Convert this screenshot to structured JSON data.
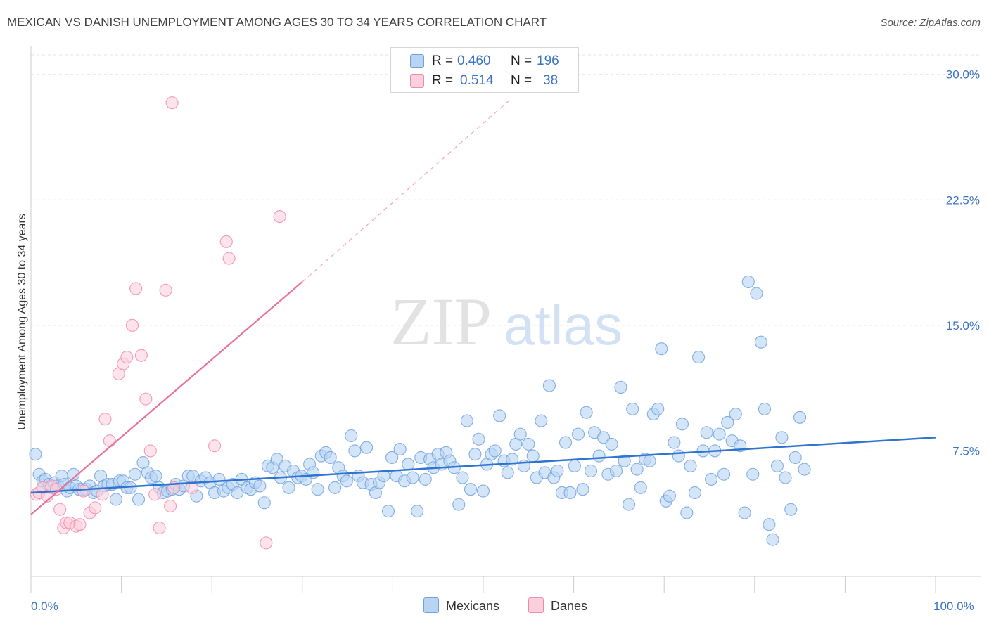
{
  "title": "MEXICAN VS DANISH UNEMPLOYMENT AMONG AGES 30 TO 34 YEARS CORRELATION CHART",
  "source": "Source: ZipAtlas.com",
  "watermark": {
    "zip": "ZIP",
    "atlas": "atlas"
  },
  "stats": {
    "mexicans": {
      "r_label": "R =",
      "r_value": "0.460",
      "n_label": "N =",
      "n_value": "196"
    },
    "danes": {
      "r_label": "R =",
      "r_value": "0.514",
      "n_label": "N =",
      "n_value": "38"
    }
  },
  "legend": {
    "mexicans": "Mexicans",
    "danes": "Danes"
  },
  "colors": {
    "mexicans": "#6fa3e0",
    "mexicans_fill": "#b9d3f3",
    "mexicans_line": "#2f74cf",
    "danes": "#f08cab",
    "danes_fill": "#fbd0dd",
    "danes_line": "#e8709a",
    "axis_text": "#3a74c4"
  },
  "chart_data": {
    "type": "scatter",
    "title": "MEXICAN VS DANISH UNEMPLOYMENT AMONG AGES 30 TO 34 YEARS CORRELATION CHART",
    "xlabel": "",
    "ylabel": "Unemployment Among Ages 30 to 34 years",
    "xlim": [
      0,
      100
    ],
    "ylim": [
      0,
      31.5
    ],
    "x_tick_labels": [
      "0.0%",
      "100.0%"
    ],
    "y_ticks": [
      7.5,
      15.0,
      22.5,
      30.0
    ],
    "y_tick_labels": [
      "7.5%",
      "15.0%",
      "22.5%",
      "30.0%"
    ],
    "grid": true,
    "legend_position": "bottom-center",
    "series": [
      {
        "name": "Mexicans",
        "trend": {
          "x0": 0,
          "y0": 5.0,
          "x1": 100,
          "y1": 8.3
        },
        "points": [
          [
            0.5,
            7.3
          ],
          [
            0.9,
            6.1
          ],
          [
            1.3,
            5.7
          ],
          [
            1.6,
            5.8
          ],
          [
            2.0,
            5.5
          ],
          [
            2.2,
            5.3
          ],
          [
            2.6,
            5.6
          ],
          [
            3.0,
            5.4
          ],
          [
            3.4,
            6.0
          ],
          [
            3.7,
            5.5
          ],
          [
            4.0,
            5.1
          ],
          [
            4.3,
            5.3
          ],
          [
            4.7,
            6.1
          ],
          [
            5.0,
            5.4
          ],
          [
            5.3,
            5.2
          ],
          [
            5.7,
            5.2
          ],
          [
            6.1,
            5.2
          ],
          [
            6.5,
            5.4
          ],
          [
            6.9,
            5.0
          ],
          [
            7.3,
            5.1
          ],
          [
            7.7,
            6.0
          ],
          [
            8.1,
            5.4
          ],
          [
            8.5,
            5.5
          ],
          [
            9.0,
            5.5
          ],
          [
            9.4,
            4.6
          ],
          [
            9.8,
            5.7
          ],
          [
            10.2,
            5.7
          ],
          [
            10.6,
            5.3
          ],
          [
            11.0,
            5.3
          ],
          [
            11.5,
            6.1
          ],
          [
            11.9,
            4.6
          ],
          [
            12.4,
            6.8
          ],
          [
            12.9,
            6.2
          ],
          [
            13.3,
            5.9
          ],
          [
            13.8,
            6.0
          ],
          [
            14.2,
            5.3
          ],
          [
            14.6,
            5.0
          ],
          [
            15.1,
            5.1
          ],
          [
            15.6,
            5.2
          ],
          [
            16.0,
            5.5
          ],
          [
            16.4,
            5.2
          ],
          [
            16.9,
            5.4
          ],
          [
            17.4,
            6.0
          ],
          [
            17.9,
            6.0
          ],
          [
            18.3,
            4.8
          ],
          [
            18.8,
            5.7
          ],
          [
            19.3,
            5.9
          ],
          [
            19.8,
            5.6
          ],
          [
            20.3,
            5.0
          ],
          [
            20.8,
            5.8
          ],
          [
            21.3,
            5.1
          ],
          [
            21.8,
            5.3
          ],
          [
            22.3,
            5.5
          ],
          [
            22.8,
            5.0
          ],
          [
            23.3,
            5.8
          ],
          [
            23.9,
            5.3
          ],
          [
            24.3,
            5.2
          ],
          [
            24.8,
            5.6
          ],
          [
            25.3,
            5.4
          ],
          [
            25.8,
            4.4
          ],
          [
            26.2,
            6.6
          ],
          [
            26.7,
            6.5
          ],
          [
            27.2,
            7.0
          ],
          [
            27.6,
            5.9
          ],
          [
            28.1,
            6.6
          ],
          [
            28.5,
            5.3
          ],
          [
            29.0,
            6.3
          ],
          [
            29.5,
            5.9
          ],
          [
            29.9,
            6.0
          ],
          [
            30.4,
            5.8
          ],
          [
            30.8,
            6.7
          ],
          [
            31.2,
            6.2
          ],
          [
            31.7,
            5.2
          ],
          [
            32.1,
            7.2
          ],
          [
            32.6,
            7.4
          ],
          [
            33.1,
            7.1
          ],
          [
            33.6,
            5.3
          ],
          [
            34.0,
            6.5
          ],
          [
            34.5,
            6.0
          ],
          [
            34.9,
            5.7
          ],
          [
            35.4,
            8.4
          ],
          [
            35.8,
            7.5
          ],
          [
            36.2,
            6.0
          ],
          [
            36.7,
            5.6
          ],
          [
            37.1,
            7.7
          ],
          [
            37.6,
            5.5
          ],
          [
            38.1,
            5.0
          ],
          [
            38.5,
            5.6
          ],
          [
            39.0,
            6.0
          ],
          [
            39.5,
            3.9
          ],
          [
            39.9,
            7.1
          ],
          [
            40.4,
            6.0
          ],
          [
            40.8,
            7.6
          ],
          [
            41.3,
            5.7
          ],
          [
            41.7,
            6.7
          ],
          [
            42.2,
            5.9
          ],
          [
            42.7,
            3.9
          ],
          [
            43.1,
            7.1
          ],
          [
            43.6,
            5.8
          ],
          [
            44.1,
            7.0
          ],
          [
            44.5,
            6.5
          ],
          [
            45.0,
            7.3
          ],
          [
            45.4,
            6.7
          ],
          [
            45.9,
            7.4
          ],
          [
            46.3,
            6.9
          ],
          [
            46.8,
            6.5
          ],
          [
            47.3,
            4.3
          ],
          [
            47.7,
            5.9
          ],
          [
            48.2,
            9.3
          ],
          [
            48.6,
            5.2
          ],
          [
            49.1,
            7.3
          ],
          [
            49.5,
            8.2
          ],
          [
            50.0,
            5.1
          ],
          [
            50.4,
            6.7
          ],
          [
            50.9,
            7.3
          ],
          [
            51.3,
            7.5
          ],
          [
            51.8,
            9.6
          ],
          [
            52.3,
            6.9
          ],
          [
            52.7,
            6.2
          ],
          [
            53.2,
            7.0
          ],
          [
            53.6,
            7.9
          ],
          [
            54.1,
            8.5
          ],
          [
            54.5,
            6.6
          ],
          [
            55.0,
            7.9
          ],
          [
            55.5,
            7.2
          ],
          [
            55.9,
            5.9
          ],
          [
            56.4,
            9.3
          ],
          [
            56.8,
            6.2
          ],
          [
            57.3,
            11.4
          ],
          [
            57.8,
            5.9
          ],
          [
            58.2,
            6.3
          ],
          [
            58.7,
            5.0
          ],
          [
            59.1,
            8.0
          ],
          [
            59.6,
            5.0
          ],
          [
            60.1,
            6.6
          ],
          [
            60.5,
            8.5
          ],
          [
            61.0,
            5.2
          ],
          [
            61.4,
            9.8
          ],
          [
            61.9,
            6.3
          ],
          [
            62.3,
            8.6
          ],
          [
            62.8,
            7.2
          ],
          [
            63.3,
            8.3
          ],
          [
            63.8,
            6.1
          ],
          [
            64.2,
            7.9
          ],
          [
            64.7,
            6.3
          ],
          [
            65.2,
            11.3
          ],
          [
            65.6,
            6.9
          ],
          [
            66.1,
            4.3
          ],
          [
            66.5,
            10.0
          ],
          [
            67.0,
            6.4
          ],
          [
            67.4,
            5.3
          ],
          [
            67.9,
            7.0
          ],
          [
            68.4,
            6.9
          ],
          [
            68.8,
            9.7
          ],
          [
            69.3,
            10.0
          ],
          [
            69.7,
            13.6
          ],
          [
            70.2,
            4.5
          ],
          [
            70.6,
            4.8
          ],
          [
            71.1,
            8.0
          ],
          [
            71.6,
            7.2
          ],
          [
            72.0,
            9.1
          ],
          [
            72.5,
            3.8
          ],
          [
            72.9,
            6.6
          ],
          [
            73.4,
            5.0
          ],
          [
            73.8,
            13.1
          ],
          [
            74.3,
            7.5
          ],
          [
            74.7,
            8.6
          ],
          [
            75.2,
            5.8
          ],
          [
            75.6,
            7.5
          ],
          [
            76.1,
            8.5
          ],
          [
            76.6,
            6.1
          ],
          [
            77.0,
            9.2
          ],
          [
            77.5,
            8.1
          ],
          [
            77.9,
            9.7
          ],
          [
            78.4,
            7.8
          ],
          [
            78.9,
            3.8
          ],
          [
            79.3,
            17.6
          ],
          [
            79.8,
            6.1
          ],
          [
            80.2,
            16.9
          ],
          [
            80.7,
            14.0
          ],
          [
            81.1,
            10.0
          ],
          [
            81.6,
            3.1
          ],
          [
            82.0,
            2.2
          ],
          [
            82.5,
            6.6
          ],
          [
            83.0,
            8.3
          ],
          [
            83.4,
            5.9
          ],
          [
            84.0,
            4.0
          ],
          [
            84.5,
            7.1
          ],
          [
            85.0,
            9.5
          ],
          [
            85.5,
            6.4
          ]
        ]
      },
      {
        "name": "Danes",
        "trend": {
          "x0": 0,
          "y0": 3.7,
          "x1": 30,
          "y1": 17.6,
          "dashed_to": {
            "x": 53,
            "y": 28.5
          }
        },
        "points": [
          [
            0.6,
            4.9
          ],
          [
            0.9,
            5.0
          ],
          [
            1.3,
            5.3
          ],
          [
            1.8,
            4.8
          ],
          [
            2.3,
            5.4
          ],
          [
            2.8,
            5.2
          ],
          [
            3.2,
            4.0
          ],
          [
            3.6,
            2.9
          ],
          [
            3.9,
            3.2
          ],
          [
            4.3,
            3.2
          ],
          [
            5.0,
            3.0
          ],
          [
            5.4,
            3.1
          ],
          [
            5.8,
            5.1
          ],
          [
            6.5,
            3.8
          ],
          [
            7.1,
            4.1
          ],
          [
            7.9,
            4.9
          ],
          [
            8.2,
            9.4
          ],
          [
            8.7,
            8.1
          ],
          [
            9.7,
            12.1
          ],
          [
            10.2,
            12.7
          ],
          [
            10.6,
            13.1
          ],
          [
            11.2,
            15.0
          ],
          [
            11.6,
            17.2
          ],
          [
            12.2,
            13.2
          ],
          [
            12.7,
            10.6
          ],
          [
            13.2,
            7.5
          ],
          [
            13.7,
            4.9
          ],
          [
            14.2,
            2.9
          ],
          [
            14.9,
            17.1
          ],
          [
            15.4,
            4.2
          ],
          [
            15.6,
            28.3
          ],
          [
            15.8,
            5.3
          ],
          [
            17.8,
            5.3
          ],
          [
            20.3,
            7.8
          ],
          [
            21.6,
            20.0
          ],
          [
            21.9,
            19.0
          ],
          [
            26.0,
            2.0
          ],
          [
            27.5,
            21.5
          ]
        ]
      }
    ]
  }
}
